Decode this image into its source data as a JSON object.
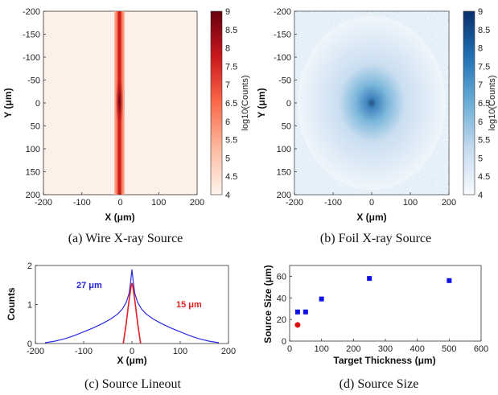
{
  "chart_data": [
    {
      "type": "heatmap",
      "caption": "(a) Wire X-ray Source",
      "xlabel": "X (μm)",
      "ylabel": "Y (μm)",
      "colorbar_label": "log10(Counts)",
      "colorbar_ticks": [
        "4",
        "4.5",
        "5",
        "5.5",
        "6",
        "6.5",
        "7",
        "7.5",
        "8",
        "8.5",
        "9"
      ],
      "xlim": [
        -200,
        200
      ],
      "ylim": [
        -200,
        200
      ],
      "xticks": [
        "-200",
        "-100",
        "0",
        "100",
        "200"
      ],
      "yticks": [
        "-200",
        "-150",
        "-100",
        "-50",
        "0",
        "50",
        "100",
        "150",
        "200"
      ],
      "clim": [
        4,
        9
      ],
      "colormap": [
        "#fdf2ea",
        "#fcbba1",
        "#fb6a4a",
        "#cb181d",
        "#67000d"
      ],
      "description": "vertical wire line at x≈0, brightest at y=0"
    },
    {
      "type": "heatmap",
      "caption": "(b) Foil X-ray Source",
      "xlabel": "X (μm)",
      "ylabel": "Y (μm)",
      "colorbar_label": "log10(Counts)",
      "colorbar_ticks": [
        "4",
        "4.5",
        "5",
        "5.5",
        "6",
        "6.5",
        "7",
        "7.5",
        "8",
        "8.5",
        "9"
      ],
      "xlim": [
        -200,
        200
      ],
      "ylim": [
        -200,
        200
      ],
      "xticks": [
        "-200",
        "-100",
        "0",
        "100",
        "200"
      ],
      "yticks": [
        "-200",
        "-150",
        "-100",
        "-50",
        "0",
        "50",
        "100",
        "150",
        "200"
      ],
      "clim": [
        4,
        9
      ],
      "colormap": [
        "#f2f7fc",
        "#c6dbef",
        "#6baed6",
        "#2171b5",
        "#08306b"
      ],
      "description": "radially symmetric spot centered at (0,0)"
    },
    {
      "type": "line",
      "caption": "(c) Source Lineout",
      "xlabel": "X (μm)",
      "ylabel": "Counts",
      "xlim": [
        -200,
        200
      ],
      "ylim": [
        0,
        2
      ],
      "xticks": [
        "-200",
        "-100",
        "0",
        "100",
        "200"
      ],
      "yticks": [
        "0",
        "1",
        "2"
      ],
      "annotations": [
        {
          "text": "27 μm",
          "color": "#1f1fe0"
        },
        {
          "text": "15 μm",
          "color": "#e01f1f"
        }
      ],
      "series": [
        {
          "color": "#2a2ae6",
          "x": [
            -180,
            -160,
            -140,
            -120,
            -100,
            -80,
            -60,
            -45,
            -30,
            -20,
            -12,
            -6,
            -3,
            0,
            3,
            6,
            12,
            20,
            30,
            45,
            60,
            80,
            100,
            120,
            140,
            160,
            180
          ],
          "y": [
            0.02,
            0.06,
            0.12,
            0.2,
            0.3,
            0.4,
            0.52,
            0.62,
            0.75,
            0.88,
            1.05,
            1.28,
            1.55,
            1.9,
            1.55,
            1.28,
            1.05,
            0.88,
            0.75,
            0.62,
            0.52,
            0.4,
            0.3,
            0.2,
            0.12,
            0.06,
            0.02
          ]
        },
        {
          "color": "#e02020",
          "x": [
            -18,
            -12,
            -6,
            -2,
            0,
            2,
            6,
            12,
            18
          ],
          "y": [
            0.0,
            0.5,
            1.1,
            1.45,
            1.55,
            1.45,
            1.1,
            0.5,
            0.0
          ]
        }
      ]
    },
    {
      "type": "scatter",
      "caption": "(d) Source Size",
      "xlabel": "Target Thickness (μm)",
      "ylabel": "Source Size (μm)",
      "xlim": [
        0,
        600
      ],
      "ylim": [
        0,
        70
      ],
      "xticks": [
        "0",
        "100",
        "200",
        "300",
        "400",
        "500",
        "600"
      ],
      "yticks": [
        "0",
        "20",
        "40",
        "60"
      ],
      "series": [
        {
          "marker": "square",
          "color": "#1010e8",
          "x": [
            25,
            50,
            100,
            250,
            500
          ],
          "y": [
            27,
            27,
            39,
            58,
            56
          ]
        },
        {
          "marker": "circle",
          "color": "#e01010",
          "x": [
            25
          ],
          "y": [
            15
          ]
        }
      ]
    }
  ]
}
